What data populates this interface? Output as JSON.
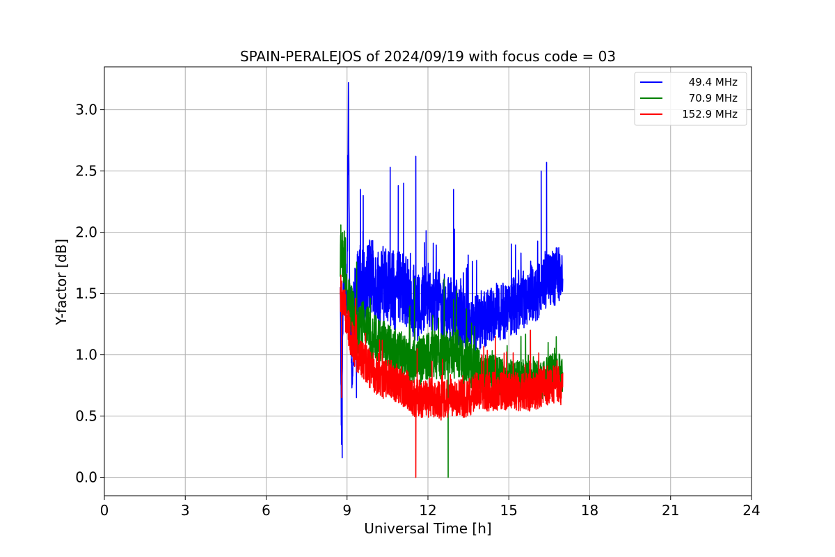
{
  "chart_data": {
    "type": "line",
    "title": "SPAIN-PERALEJOS of 2024/09/19 with focus code = 03",
    "xlabel": "Universal Time [h]",
    "ylabel": "Y-factor [dB]",
    "xlim": [
      0,
      24
    ],
    "ylim": [
      -0.15,
      3.35
    ],
    "xticks": [
      0,
      3,
      6,
      9,
      12,
      15,
      18,
      21,
      24
    ],
    "xtick_labels": [
      "0",
      "3",
      "6",
      "9",
      "12",
      "15",
      "18",
      "21",
      "24"
    ],
    "yticks": [
      0.0,
      0.5,
      1.0,
      1.5,
      2.0,
      2.5,
      3.0
    ],
    "ytick_labels": [
      "0.0",
      "0.5",
      "1.0",
      "1.5",
      "2.0",
      "2.5",
      "3.0"
    ],
    "grid": true,
    "legend_position": "top-right",
    "series": [
      {
        "name": "49.4 MHz",
        "color": "#0000ff",
        "x": [
          8.75,
          8.8,
          8.85,
          8.9,
          9.0,
          9.05,
          9.1,
          9.2,
          9.3,
          9.4,
          9.5,
          9.6,
          9.8,
          10.0,
          10.2,
          10.5,
          10.8,
          11.0,
          11.3,
          11.5,
          11.6,
          11.8,
          12.0,
          12.3,
          12.5,
          12.8,
          13.0,
          13.3,
          13.5,
          13.8,
          14.0,
          14.3,
          14.5,
          14.8,
          15.0,
          15.3,
          15.5,
          15.8,
          16.0,
          16.2,
          16.4,
          16.6,
          16.8,
          17.0
        ],
        "y": [
          1.45,
          0.16,
          1.5,
          1.6,
          1.5,
          3.17,
          1.4,
          0.8,
          1.5,
          1.55,
          1.6,
          1.5,
          1.65,
          1.6,
          1.55,
          1.6,
          1.5,
          1.55,
          1.5,
          1.4,
          1.35,
          1.45,
          1.5,
          1.45,
          1.4,
          1.35,
          1.35,
          1.3,
          1.3,
          1.25,
          1.3,
          1.3,
          1.35,
          1.35,
          1.4,
          1.4,
          1.45,
          1.5,
          1.5,
          1.55,
          1.6,
          1.6,
          1.65,
          1.7
        ],
        "noise": [
          0.3,
          0.1,
          0.3,
          0.35,
          0.3,
          0.1,
          0.35,
          0.3,
          0.4,
          0.4,
          0.45,
          0.4,
          0.4,
          0.4,
          0.4,
          0.4,
          0.4,
          0.4,
          0.35,
          0.35,
          0.35,
          0.35,
          0.35,
          0.35,
          0.35,
          0.35,
          0.35,
          0.3,
          0.3,
          0.3,
          0.3,
          0.3,
          0.3,
          0.3,
          0.3,
          0.3,
          0.3,
          0.3,
          0.3,
          0.3,
          0.3,
          0.3,
          0.3,
          0.25
        ],
        "peaks": [
          [
            9.05,
            3.17
          ],
          [
            9.5,
            2.35
          ],
          [
            9.6,
            2.3
          ],
          [
            10.6,
            2.53
          ],
          [
            10.9,
            2.38
          ],
          [
            11.1,
            2.4
          ],
          [
            11.55,
            2.62
          ],
          [
            12.95,
            2.35
          ],
          [
            16.4,
            2.57
          ],
          [
            16.2,
            2.5
          ],
          [
            8.82,
            0.16
          ],
          [
            9.35,
            0.65
          ]
        ]
      },
      {
        "name": "70.9 MHz",
        "color": "#008000",
        "x": [
          8.75,
          8.85,
          9.0,
          9.2,
          9.4,
          9.6,
          9.8,
          10.0,
          10.3,
          10.6,
          11.0,
          11.3,
          11.5,
          11.8,
          12.0,
          12.3,
          12.5,
          12.8,
          13.0,
          13.3,
          13.5,
          13.8,
          14.0,
          14.3,
          14.5,
          14.8,
          15.0,
          15.3,
          15.5,
          15.8,
          16.0,
          16.3,
          16.6,
          16.8,
          17.0
        ],
        "y": [
          1.8,
          1.8,
          1.5,
          1.35,
          1.2,
          1.25,
          1.2,
          1.15,
          1.1,
          1.05,
          1.0,
          0.95,
          0.95,
          0.95,
          1.0,
          1.0,
          1.0,
          1.0,
          1.0,
          0.95,
          0.95,
          0.9,
          0.85,
          0.85,
          0.85,
          0.8,
          0.8,
          0.8,
          0.8,
          0.8,
          0.8,
          0.8,
          0.85,
          0.85,
          0.85
        ],
        "noise": [
          0.25,
          0.25,
          0.2,
          0.25,
          0.25,
          0.25,
          0.25,
          0.25,
          0.25,
          0.25,
          0.25,
          0.25,
          0.25,
          0.25,
          0.25,
          0.25,
          0.25,
          0.25,
          0.25,
          0.25,
          0.25,
          0.25,
          0.2,
          0.2,
          0.2,
          0.2,
          0.2,
          0.2,
          0.2,
          0.2,
          0.2,
          0.2,
          0.2,
          0.2,
          0.2
        ],
        "peaks": [
          [
            8.77,
            2.06
          ],
          [
            8.9,
            2.01
          ],
          [
            12.75,
            0.0
          ],
          [
            11.5,
            1.62
          ],
          [
            12.6,
            1.62
          ],
          [
            12.95,
            1.45
          ],
          [
            15.8,
            1.2
          ]
        ]
      },
      {
        "name": "152.9 MHz",
        "color": "#ff0000",
        "x": [
          8.75,
          8.8,
          8.9,
          9.0,
          9.2,
          9.4,
          9.6,
          9.8,
          10.0,
          10.3,
          10.6,
          11.0,
          11.3,
          11.5,
          11.8,
          12.0,
          12.3,
          12.5,
          12.8,
          13.0,
          13.3,
          13.5,
          13.8,
          14.0,
          14.3,
          14.5,
          14.8,
          15.0,
          15.3,
          15.5,
          15.8,
          16.0,
          16.3,
          16.6,
          16.8,
          17.0
        ],
        "y": [
          1.5,
          1.45,
          1.4,
          1.25,
          1.1,
          1.0,
          0.95,
          0.9,
          0.85,
          0.8,
          0.8,
          0.75,
          0.7,
          0.65,
          0.65,
          0.65,
          0.65,
          0.62,
          0.65,
          0.65,
          0.65,
          0.65,
          0.7,
          0.7,
          0.7,
          0.7,
          0.7,
          0.7,
          0.7,
          0.7,
          0.7,
          0.7,
          0.75,
          0.75,
          0.75,
          0.75
        ],
        "noise": [
          0.2,
          0.2,
          0.2,
          0.2,
          0.2,
          0.2,
          0.2,
          0.2,
          0.2,
          0.2,
          0.2,
          0.2,
          0.2,
          0.2,
          0.2,
          0.2,
          0.2,
          0.2,
          0.2,
          0.2,
          0.2,
          0.2,
          0.2,
          0.2,
          0.2,
          0.2,
          0.2,
          0.2,
          0.2,
          0.2,
          0.2,
          0.2,
          0.2,
          0.2,
          0.2,
          0.2
        ],
        "peaks": [
          [
            8.77,
            1.65
          ],
          [
            8.8,
            0.65
          ],
          [
            11.55,
            0.0
          ],
          [
            11.6,
            1.05
          ],
          [
            15.8,
            1.2
          ],
          [
            14.5,
            1.15
          ]
        ]
      }
    ]
  }
}
